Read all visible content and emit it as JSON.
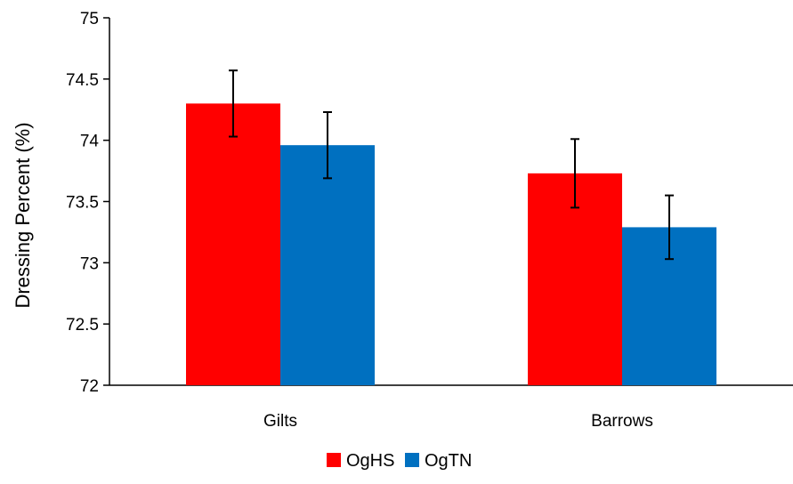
{
  "chart_data": {
    "type": "bar",
    "title": "",
    "xlabel": "",
    "ylabel": "Dressing Percent (%)",
    "categories": [
      "Gilts",
      "Barrows"
    ],
    "series": [
      {
        "name": "OgHS",
        "color": "#ff0000",
        "values": [
          74.3,
          73.73
        ],
        "errors": [
          0.27,
          0.28
        ]
      },
      {
        "name": "OgTN",
        "color": "#0070c0",
        "values": [
          73.96,
          73.29
        ],
        "errors": [
          0.27,
          0.26
        ]
      }
    ],
    "ylim": [
      72,
      75
    ],
    "yticks": [
      72,
      72.5,
      73,
      73.5,
      74,
      74.5,
      75
    ],
    "ytick_labels": [
      "72",
      "72.5",
      "73",
      "73.5",
      "74",
      "74.5",
      "75"
    ],
    "grid": false,
    "legend_position": "bottom"
  }
}
